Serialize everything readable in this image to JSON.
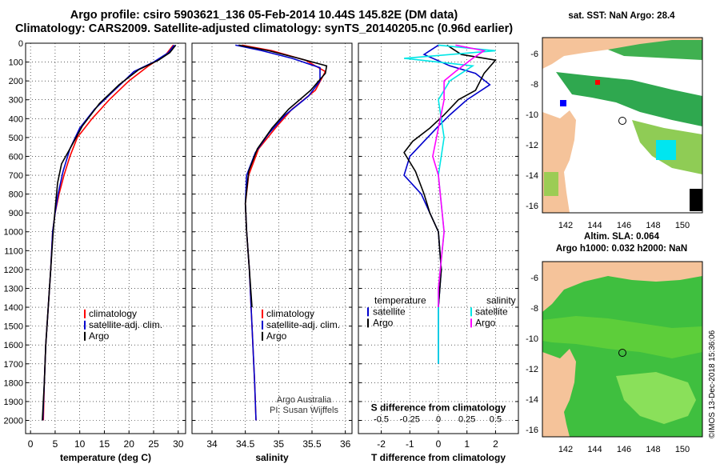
{
  "header": {
    "line1": "Argo profile: csiro 5903621_136 05-Feb-2014 10.44S 145.82E (DM data)",
    "line2": "Climatology: CARS2009. Satellite-adjusted climatology: synTS_20140205.nc (0.96d earlier)"
  },
  "depth_axis": {
    "ylim": [
      0,
      2070
    ],
    "ticks": [
      0,
      100,
      200,
      300,
      400,
      500,
      600,
      700,
      800,
      900,
      1000,
      1100,
      1200,
      1300,
      1400,
      1500,
      1600,
      1700,
      1800,
      1900,
      2000
    ]
  },
  "chart_data": [
    {
      "type": "line",
      "id": "temperature",
      "xlabel": "temperature (deg C)",
      "xlim": [
        -1,
        31.5
      ],
      "xticks": [
        0,
        5,
        10,
        15,
        20,
        25,
        30
      ],
      "series": [
        {
          "name": "climatology",
          "color": "#ff0000",
          "points": [
            [
              29,
              10
            ],
            [
              27.5,
              60
            ],
            [
              24,
              120
            ],
            [
              20,
              200
            ],
            [
              16,
              300
            ],
            [
              12.5,
              400
            ],
            [
              9.5,
              500
            ],
            [
              8,
              600
            ],
            [
              6.8,
              700
            ],
            [
              5.8,
              800
            ],
            [
              5,
              900
            ],
            [
              4.5,
              1000
            ],
            [
              4.1,
              1200
            ],
            [
              3.6,
              1400
            ],
            [
              3.1,
              1600
            ],
            [
              2.8,
              1800
            ],
            [
              2.6,
              2000
            ]
          ]
        },
        {
          "name": "satellite-adj. clim.",
          "color": "#0000cc",
          "points": [
            [
              29.2,
              10
            ],
            [
              28,
              50
            ],
            [
              25,
              100
            ],
            [
              21,
              150
            ],
            [
              17,
              250
            ],
            [
              13,
              350
            ],
            [
              10,
              450
            ],
            [
              8,
              560
            ],
            [
              6.6,
              680
            ],
            [
              5.6,
              800
            ],
            [
              5,
              900
            ],
            [
              4.5,
              1000
            ],
            [
              4.1,
              1200
            ],
            [
              3.6,
              1400
            ],
            [
              3.1,
              1600
            ],
            [
              2.8,
              1800
            ],
            [
              2.5,
              2000
            ]
          ]
        },
        {
          "name": "Argo",
          "color": "#000000",
          "points": [
            [
              29.5,
              10
            ],
            [
              28.3,
              50
            ],
            [
              26,
              90
            ],
            [
              22,
              140
            ],
            [
              18,
              220
            ],
            [
              14,
              320
            ],
            [
              10.5,
              440
            ],
            [
              8,
              560
            ],
            [
              6.3,
              640
            ],
            [
              5.5,
              740
            ],
            [
              5,
              880
            ],
            [
              4.6,
              1000
            ],
            [
              4.1,
              1200
            ],
            [
              3.6,
              1400
            ],
            [
              3.1,
              1600
            ],
            [
              2.8,
              1800
            ],
            [
              2.4,
              2000
            ]
          ]
        }
      ],
      "legend": [
        "climatology",
        "satellite-adj. clim.",
        "Argo"
      ]
    },
    {
      "type": "line",
      "id": "salinity",
      "xlabel": "salinity",
      "xlim": [
        33.7,
        36.1
      ],
      "xticks": [
        34,
        34.5,
        35,
        35.5,
        36
      ],
      "xticklabels": [
        "34",
        "34.5",
        "35",
        "35.5",
        "36"
      ],
      "series": [
        {
          "name": "climatology",
          "color": "#ff0000",
          "points": [
            [
              34.45,
              10
            ],
            [
              34.9,
              40
            ],
            [
              35.4,
              90
            ],
            [
              35.7,
              150
            ],
            [
              35.55,
              250
            ],
            [
              35.2,
              350
            ],
            [
              34.95,
              450
            ],
            [
              34.7,
              560
            ],
            [
              34.55,
              700
            ],
            [
              34.5,
              850
            ],
            [
              34.52,
              1000
            ],
            [
              34.56,
              1200
            ],
            [
              34.6,
              1500
            ],
            [
              34.64,
              1800
            ],
            [
              34.66,
              2000
            ]
          ]
        },
        {
          "name": "satellite-adj. clim.",
          "color": "#0000cc",
          "points": [
            [
              34.35,
              10
            ],
            [
              34.75,
              40
            ],
            [
              35.2,
              80
            ],
            [
              35.62,
              130
            ],
            [
              35.62,
              200
            ],
            [
              35.45,
              280
            ],
            [
              35.1,
              380
            ],
            [
              34.85,
              480
            ],
            [
              34.65,
              580
            ],
            [
              34.52,
              700
            ],
            [
              34.5,
              850
            ],
            [
              34.52,
              1000
            ],
            [
              34.56,
              1200
            ],
            [
              34.6,
              1500
            ],
            [
              34.64,
              1800
            ],
            [
              34.66,
              2000
            ]
          ]
        },
        {
          "name": "Argo",
          "color": "#000000",
          "points": [
            [
              34.4,
              10
            ],
            [
              34.85,
              40
            ],
            [
              35.3,
              80
            ],
            [
              35.72,
              120
            ],
            [
              35.7,
              160
            ],
            [
              35.48,
              250
            ],
            [
              35.15,
              350
            ],
            [
              34.9,
              450
            ],
            [
              34.68,
              560
            ],
            [
              34.55,
              680
            ],
            [
              34.5,
              850
            ],
            [
              34.52,
              1000
            ],
            [
              34.56,
              1200
            ],
            [
              34.6,
              1400
            ]
          ]
        }
      ],
      "legend": [
        "climatology",
        "satellite-adj. clim.",
        "Argo"
      ],
      "annotations": [
        "Argo Australia",
        "PI: Susan Wijffels"
      ]
    },
    {
      "type": "line",
      "id": "differences",
      "xlabel": "T difference from climatology",
      "xlim": [
        -2.8,
        2.8
      ],
      "xticks": [
        -2,
        -1,
        0,
        1,
        2
      ],
      "top_axis": {
        "label": "S difference from climatology",
        "ticks": [
          -0.5,
          -0.25,
          0,
          0.25,
          0.5
        ],
        "ticklabels": [
          "-0.5",
          "-0.25",
          "0",
          "0.25",
          "0.5"
        ]
      },
      "series": [
        {
          "name": "T satellite",
          "color": "#0000cc",
          "points": [
            [
              0,
              10
            ],
            [
              -0.5,
              60
            ],
            [
              0.4,
              120
            ],
            [
              1.3,
              160
            ],
            [
              1.8,
              220
            ],
            [
              1,
              300
            ],
            [
              0.4,
              380
            ],
            [
              0,
              440
            ],
            [
              -0.5,
              520
            ],
            [
              -1,
              600
            ],
            [
              -1.2,
              700
            ],
            [
              -0.6,
              800
            ],
            [
              -0.3,
              900
            ],
            [
              0,
              1000
            ],
            [
              0.1,
              1200
            ],
            [
              0,
              1400
            ],
            [
              0,
              1700
            ]
          ]
        },
        {
          "name": "T Argo",
          "color": "#000000",
          "points": [
            [
              0.3,
              10
            ],
            [
              0.8,
              60
            ],
            [
              2,
              90
            ],
            [
              1.6,
              160
            ],
            [
              1.3,
              250
            ],
            [
              0.7,
              300
            ],
            [
              0.2,
              380
            ],
            [
              -0.3,
              450
            ],
            [
              -0.9,
              520
            ],
            [
              -1.2,
              580
            ],
            [
              -0.8,
              680
            ],
            [
              -0.5,
              800
            ],
            [
              -0.3,
              900
            ],
            [
              0,
              1000
            ],
            [
              0.1,
              1200
            ],
            [
              0,
              1400
            ]
          ]
        },
        {
          "name": "S satellite",
          "color": "#00e6e6",
          "points": [
            [
              0,
              10
            ],
            [
              0.5,
              40
            ],
            [
              -0.3,
              80
            ],
            [
              0.3,
              120
            ],
            [
              0.1,
              200
            ],
            [
              0,
              300
            ],
            [
              0.05,
              500
            ],
            [
              0,
              700
            ],
            [
              0.05,
              1000
            ],
            [
              0,
              1300
            ],
            [
              0,
              1700
            ]
          ]
        },
        {
          "name": "S Argo",
          "color": "#ff00ff",
          "points": [
            [
              0.15,
              10
            ],
            [
              0.4,
              40
            ],
            [
              0.3,
              80
            ],
            [
              0.15,
              150
            ],
            [
              0.05,
              200
            ],
            [
              0.05,
              300
            ],
            [
              0,
              450
            ],
            [
              -0.05,
              600
            ],
            [
              0,
              700
            ],
            [
              0.05,
              1000
            ],
            [
              0,
              1300
            ],
            [
              0,
              1400
            ]
          ]
        }
      ],
      "legend_title_left": "temperature",
      "legend_title_right": "salinity",
      "legend_left": [
        "satellite",
        "Argo"
      ],
      "legend_right": [
        "satellite",
        "Argo"
      ]
    }
  ],
  "maps": {
    "sst": {
      "title": "sat. SST: NaN Argo: 28.4",
      "yticks": [
        "-6",
        "-8",
        "-10",
        "-12",
        "-14",
        "-16"
      ],
      "xticks": [
        "142",
        "144",
        "146",
        "148",
        "150"
      ]
    },
    "sla": {
      "title_line1": "Altim. SLA: 0.064",
      "title_line2": "Argo h1000: 0.032 h2000: NaN",
      "yticks": [
        "-6",
        "-8",
        "-10",
        "-12",
        "-14",
        "-16"
      ],
      "xticks": [
        "142",
        "144",
        "146",
        "148",
        "150"
      ]
    }
  },
  "credit": "©IMOS 13-Dec-2018 15:36:06"
}
